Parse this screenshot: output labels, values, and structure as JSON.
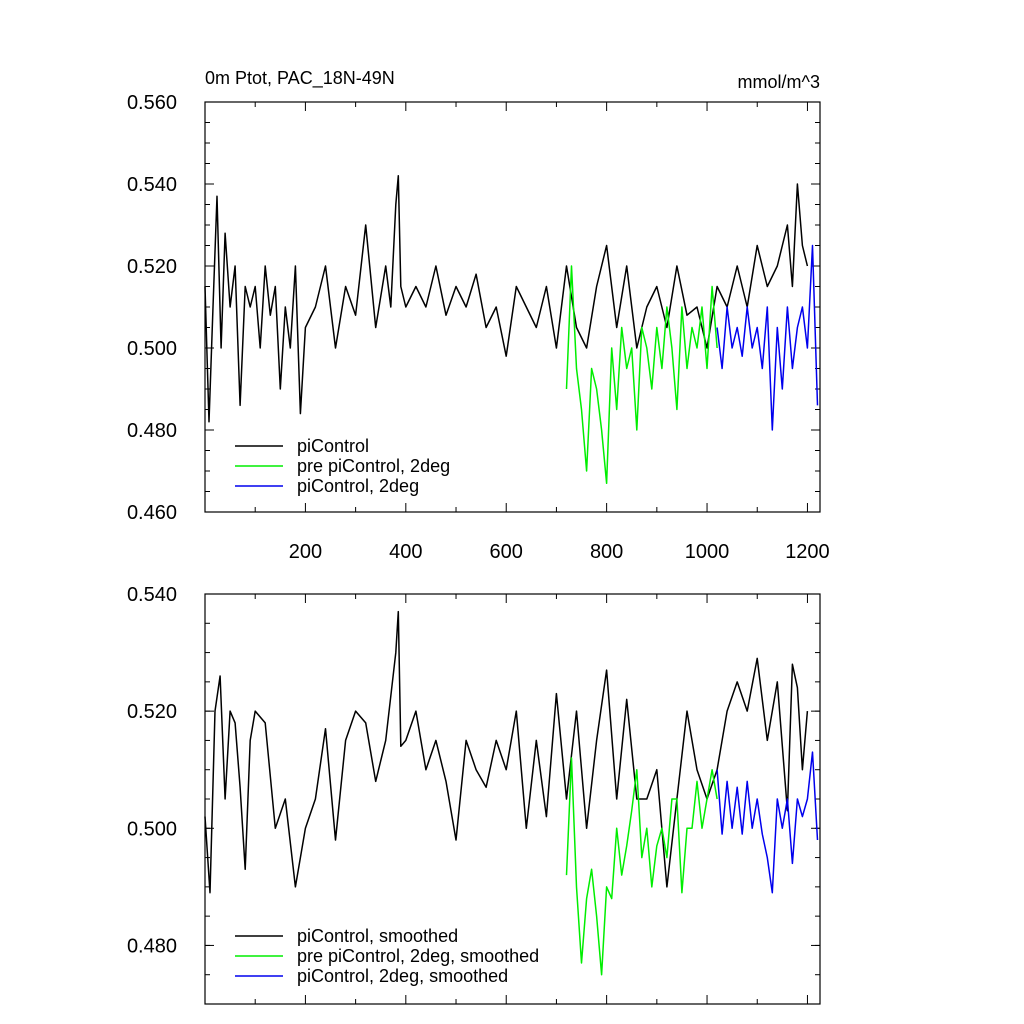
{
  "chart_data": [
    {
      "type": "line",
      "title": "0m Ptot, PAC_18N-49N",
      "units": "mmol/m^3",
      "xlim": [
        0,
        1225
      ],
      "ylim": [
        0.46,
        0.56
      ],
      "yticks": [
        "0.460",
        "0.480",
        "0.500",
        "0.520",
        "0.540",
        "0.560"
      ],
      "xticks": [
        "200",
        "400",
        "600",
        "800",
        "1000",
        "1200"
      ],
      "grid": false,
      "legend_position": "bottom-left",
      "series": [
        {
          "name": "piControl",
          "color": "#000000",
          "x": [
            0,
            8,
            16,
            24,
            32,
            40,
            50,
            60,
            70,
            80,
            90,
            100,
            110,
            120,
            130,
            140,
            150,
            160,
            170,
            180,
            190,
            200,
            220,
            240,
            260,
            280,
            300,
            320,
            340,
            360,
            370,
            380,
            385,
            390,
            400,
            420,
            440,
            460,
            480,
            500,
            520,
            540,
            560,
            580,
            600,
            620,
            640,
            660,
            680,
            700,
            720,
            740,
            760,
            780,
            800,
            820,
            840,
            860,
            880,
            900,
            920,
            940,
            960,
            980,
            1000,
            1020,
            1040,
            1060,
            1080,
            1100,
            1120,
            1140,
            1160,
            1170,
            1180,
            1190,
            1200
          ],
          "y": [
            0.515,
            0.482,
            0.51,
            0.537,
            0.5,
            0.528,
            0.51,
            0.52,
            0.486,
            0.515,
            0.51,
            0.515,
            0.5,
            0.52,
            0.508,
            0.515,
            0.49,
            0.51,
            0.5,
            0.52,
            0.484,
            0.505,
            0.51,
            0.52,
            0.5,
            0.515,
            0.508,
            0.53,
            0.505,
            0.52,
            0.51,
            0.535,
            0.542,
            0.515,
            0.51,
            0.515,
            0.51,
            0.52,
            0.508,
            0.515,
            0.51,
            0.518,
            0.505,
            0.51,
            0.498,
            0.515,
            0.51,
            0.505,
            0.515,
            0.5,
            0.52,
            0.505,
            0.5,
            0.515,
            0.525,
            0.505,
            0.52,
            0.5,
            0.51,
            0.515,
            0.505,
            0.52,
            0.508,
            0.51,
            0.5,
            0.515,
            0.51,
            0.52,
            0.51,
            0.525,
            0.515,
            0.52,
            0.53,
            0.515,
            0.54,
            0.525,
            0.52
          ]
        },
        {
          "name": "pre piControl, 2deg",
          "color": "#00ee00",
          "x": [
            720,
            730,
            740,
            750,
            760,
            770,
            780,
            790,
            800,
            810,
            820,
            830,
            840,
            850,
            860,
            870,
            880,
            890,
            900,
            910,
            920,
            930,
            940,
            950,
            960,
            970,
            980,
            990,
            1000,
            1010,
            1020
          ],
          "y": [
            0.49,
            0.52,
            0.495,
            0.485,
            0.47,
            0.495,
            0.49,
            0.48,
            0.467,
            0.5,
            0.485,
            0.505,
            0.495,
            0.5,
            0.48,
            0.505,
            0.5,
            0.49,
            0.505,
            0.495,
            0.51,
            0.5,
            0.485,
            0.51,
            0.495,
            0.505,
            0.5,
            0.51,
            0.495,
            0.515,
            0.5
          ]
        },
        {
          "name": "piControl, 2deg",
          "color": "#0000ee",
          "x": [
            1020,
            1030,
            1040,
            1050,
            1060,
            1070,
            1080,
            1090,
            1100,
            1110,
            1120,
            1130,
            1140,
            1150,
            1160,
            1170,
            1180,
            1190,
            1200,
            1210,
            1220
          ],
          "y": [
            0.505,
            0.495,
            0.51,
            0.5,
            0.505,
            0.498,
            0.51,
            0.5,
            0.505,
            0.495,
            0.51,
            0.48,
            0.505,
            0.49,
            0.51,
            0.495,
            0.505,
            0.51,
            0.5,
            0.525,
            0.486
          ]
        }
      ]
    },
    {
      "type": "line",
      "xlim": [
        0,
        1225
      ],
      "ylim": [
        0.47,
        0.54
      ],
      "yticks": [
        "0.480",
        "0.500",
        "0.520",
        "0.540"
      ],
      "grid": false,
      "legend_position": "bottom-left",
      "series": [
        {
          "name": "piControl, smoothed",
          "color": "#000000",
          "x": [
            0,
            10,
            20,
            30,
            40,
            50,
            60,
            70,
            80,
            90,
            100,
            120,
            140,
            160,
            180,
            200,
            220,
            240,
            260,
            280,
            300,
            320,
            340,
            360,
            380,
            385,
            390,
            400,
            420,
            440,
            460,
            480,
            500,
            520,
            540,
            560,
            580,
            600,
            620,
            640,
            660,
            680,
            700,
            720,
            740,
            760,
            780,
            800,
            820,
            840,
            860,
            880,
            900,
            920,
            940,
            960,
            980,
            1000,
            1020,
            1040,
            1060,
            1080,
            1100,
            1120,
            1140,
            1160,
            1170,
            1180,
            1190,
            1200
          ],
          "y": [
            0.502,
            0.489,
            0.52,
            0.526,
            0.505,
            0.52,
            0.518,
            0.507,
            0.493,
            0.515,
            0.52,
            0.518,
            0.5,
            0.505,
            0.49,
            0.5,
            0.505,
            0.517,
            0.498,
            0.515,
            0.52,
            0.518,
            0.508,
            0.515,
            0.53,
            0.537,
            0.514,
            0.515,
            0.52,
            0.51,
            0.515,
            0.508,
            0.498,
            0.515,
            0.51,
            0.507,
            0.515,
            0.51,
            0.52,
            0.5,
            0.515,
            0.502,
            0.523,
            0.505,
            0.52,
            0.5,
            0.515,
            0.527,
            0.505,
            0.522,
            0.505,
            0.505,
            0.51,
            0.49,
            0.505,
            0.52,
            0.51,
            0.505,
            0.51,
            0.52,
            0.525,
            0.52,
            0.529,
            0.515,
            0.525,
            0.503,
            0.528,
            0.524,
            0.51,
            0.52
          ]
        },
        {
          "name": "pre piControl, 2deg, smoothed",
          "color": "#00ee00",
          "x": [
            720,
            730,
            740,
            750,
            760,
            770,
            780,
            790,
            800,
            810,
            820,
            830,
            840,
            850,
            860,
            870,
            880,
            890,
            900,
            910,
            920,
            930,
            940,
            950,
            960,
            970,
            980,
            990,
            1000,
            1010,
            1020
          ],
          "y": [
            0.492,
            0.512,
            0.49,
            0.477,
            0.488,
            0.493,
            0.485,
            0.475,
            0.49,
            0.488,
            0.5,
            0.492,
            0.497,
            0.503,
            0.51,
            0.495,
            0.5,
            0.49,
            0.497,
            0.5,
            0.495,
            0.505,
            0.505,
            0.489,
            0.5,
            0.5,
            0.508,
            0.5,
            0.505,
            0.51,
            0.505
          ]
        },
        {
          "name": "piControl, 2deg, smoothed",
          "color": "#0000ee",
          "x": [
            1020,
            1030,
            1040,
            1050,
            1060,
            1070,
            1080,
            1090,
            1100,
            1110,
            1120,
            1130,
            1140,
            1150,
            1160,
            1170,
            1180,
            1190,
            1200,
            1210,
            1220
          ],
          "y": [
            0.51,
            0.499,
            0.508,
            0.5,
            0.507,
            0.499,
            0.508,
            0.5,
            0.505,
            0.499,
            0.495,
            0.489,
            0.505,
            0.5,
            0.505,
            0.494,
            0.505,
            0.502,
            0.505,
            0.513,
            0.498
          ]
        }
      ]
    }
  ]
}
